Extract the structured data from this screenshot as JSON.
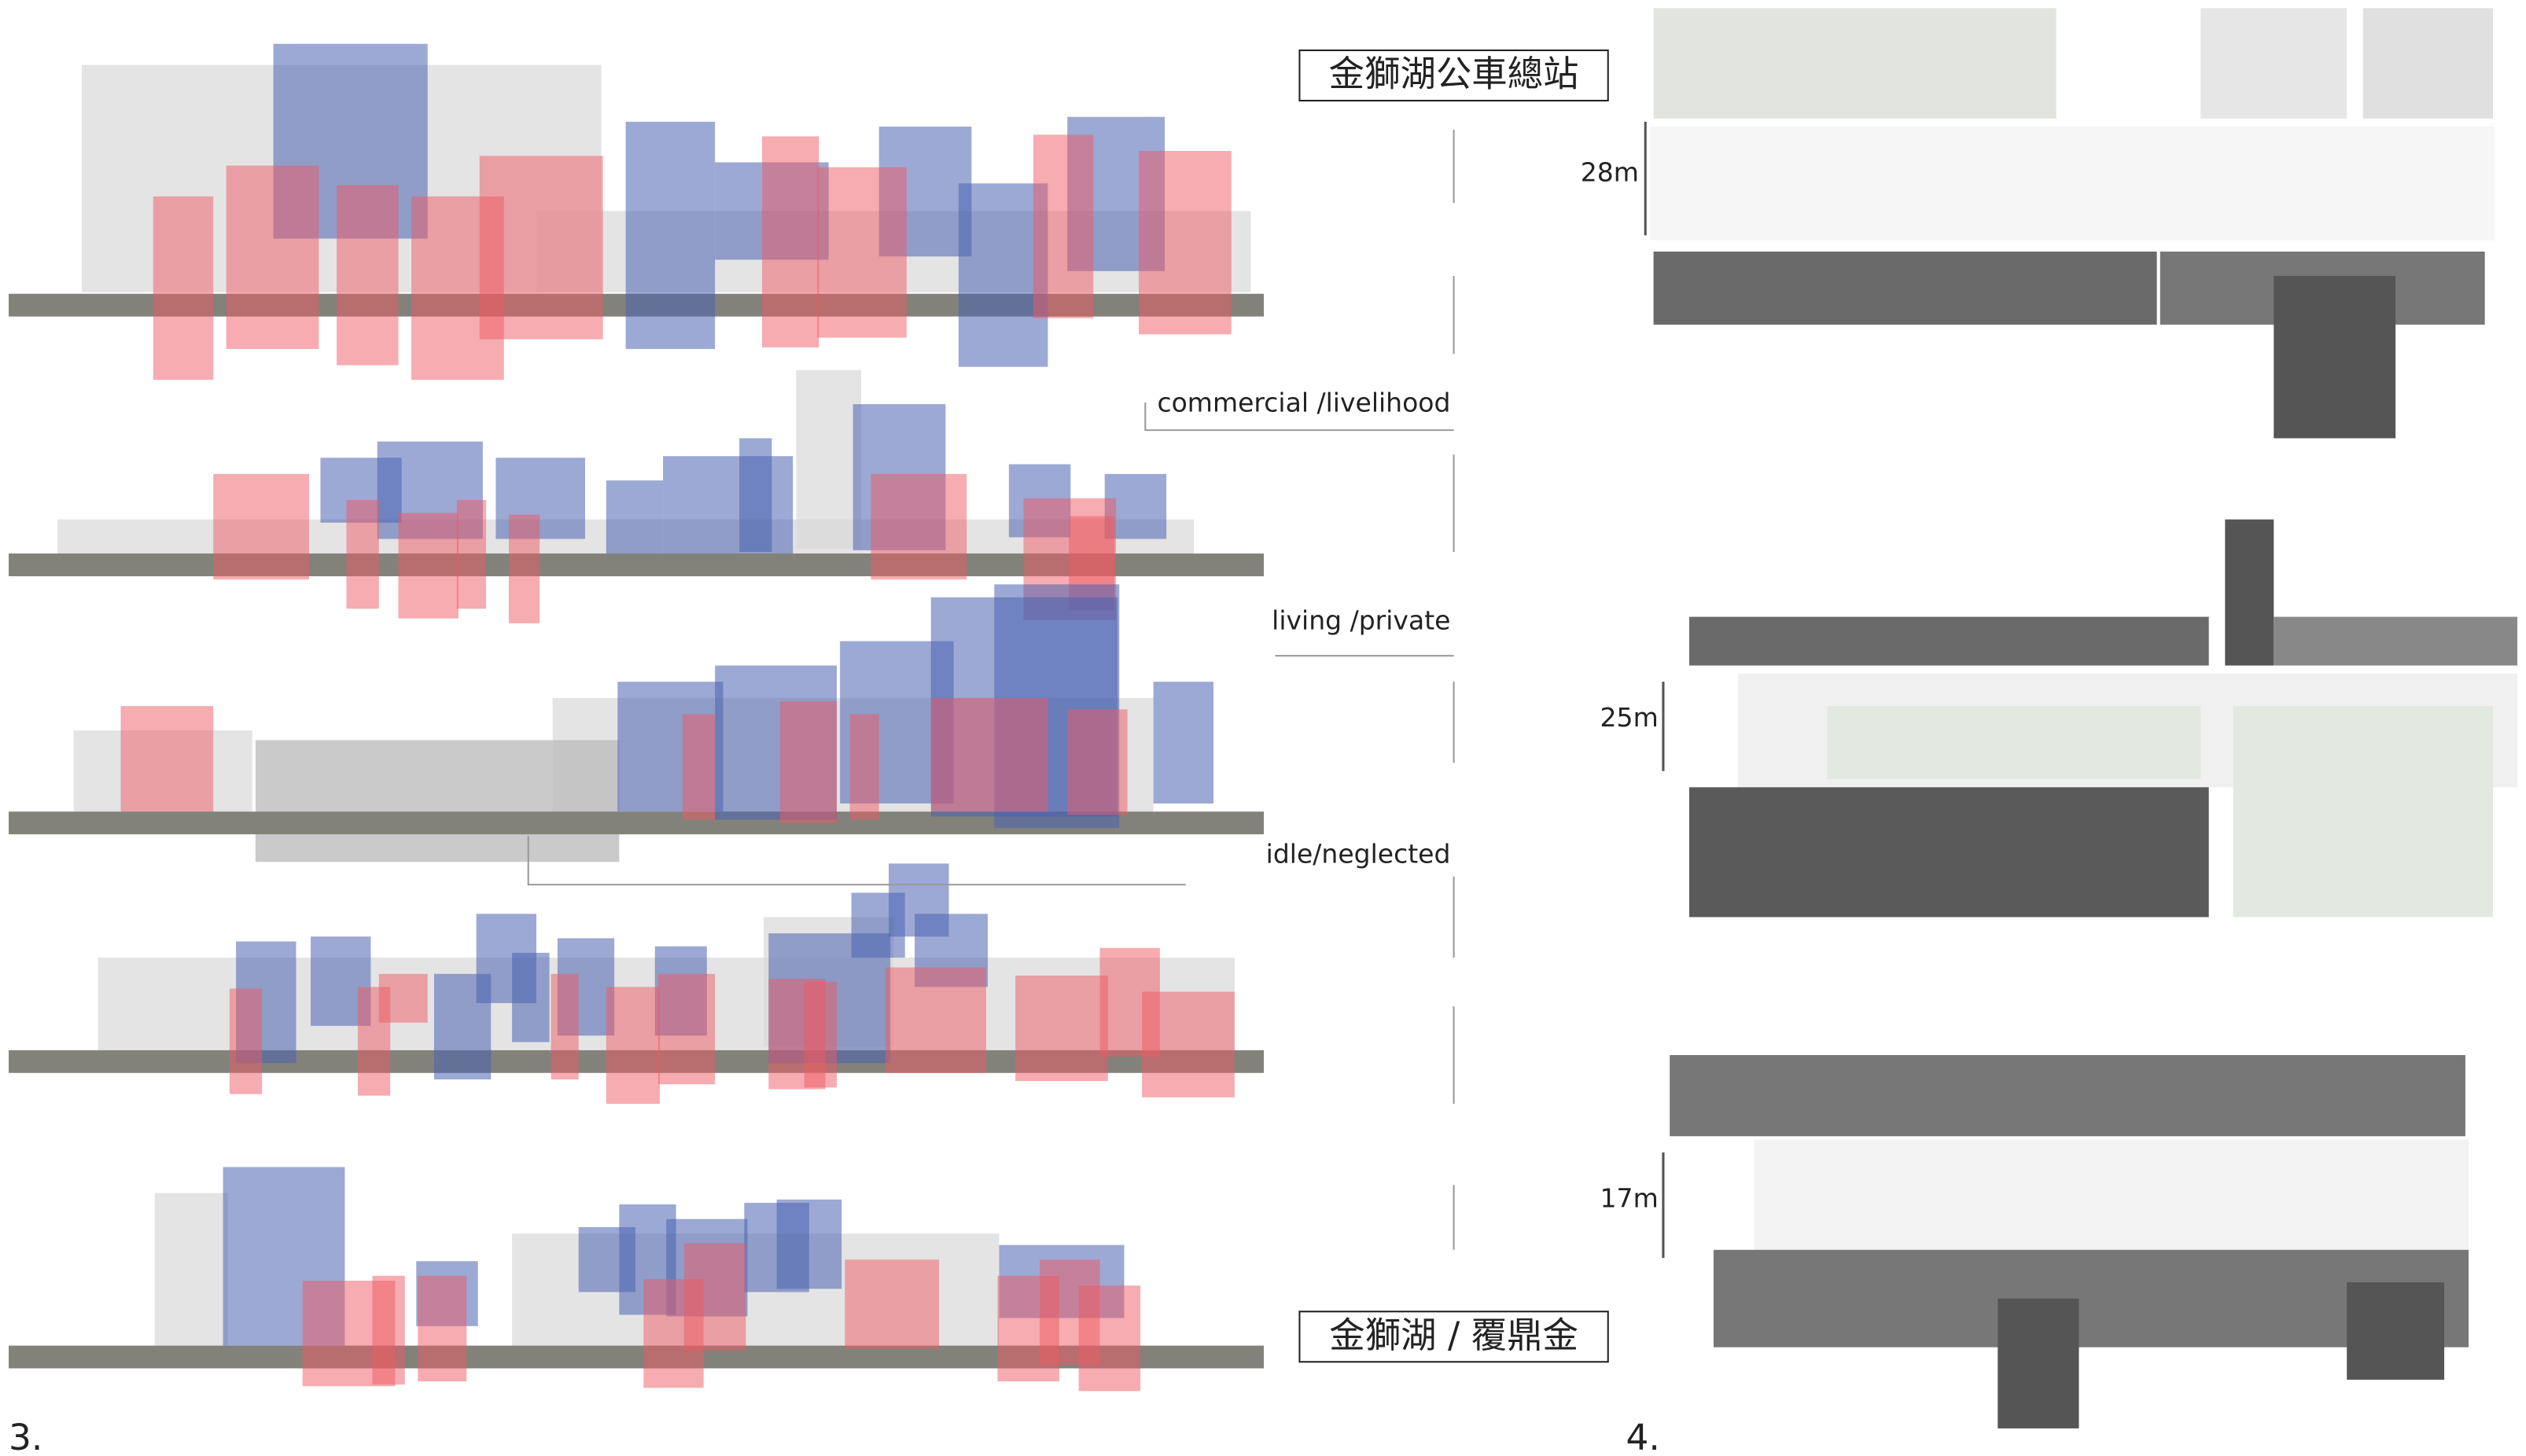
{
  "labels": {
    "station": "金獅湖公車總站",
    "district": "金獅湖 / 覆鼎金",
    "commercial": "commercial /livelihood",
    "living": "living /private",
    "idle": "idle/neglected"
  },
  "widths": [
    "28m",
    "25m",
    "17m"
  ],
  "figures": [
    "3.",
    "4."
  ]
}
